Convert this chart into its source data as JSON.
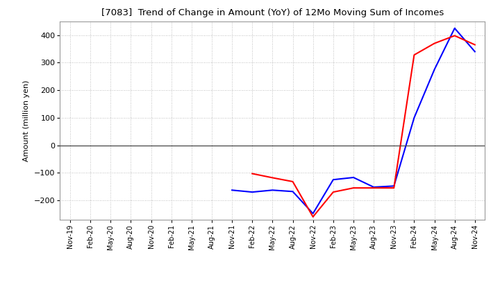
{
  "title": "[7083]  Trend of Change in Amount (YoY) of 12Mo Moving Sum of Incomes",
  "ylabel": "Amount (million yen)",
  "background_color": "#ffffff",
  "grid_color": "#aaaaaa",
  "x_labels": [
    "Nov-19",
    "Feb-20",
    "May-20",
    "Aug-20",
    "Nov-20",
    "Feb-21",
    "May-21",
    "Aug-21",
    "Nov-21",
    "Feb-22",
    "May-22",
    "Aug-22",
    "Nov-22",
    "Feb-23",
    "May-23",
    "Aug-23",
    "Nov-23",
    "Feb-24",
    "May-24",
    "Aug-24",
    "Nov-24"
  ],
  "ordinary_income": [
    null,
    null,
    null,
    null,
    null,
    null,
    null,
    null,
    -163,
    -170,
    -163,
    -168,
    -248,
    -125,
    -117,
    -152,
    -148,
    100,
    275,
    425,
    340
  ],
  "net_income": [
    null,
    null,
    null,
    null,
    null,
    null,
    null,
    null,
    null,
    -103,
    -118,
    -132,
    -260,
    -170,
    -155,
    -155,
    -155,
    328,
    370,
    398,
    365
  ],
  "ylim": [
    -270,
    450
  ],
  "yticks": [
    -200,
    -100,
    0,
    100,
    200,
    300,
    400
  ],
  "ordinary_color": "#0000ff",
  "net_color": "#ff0000"
}
